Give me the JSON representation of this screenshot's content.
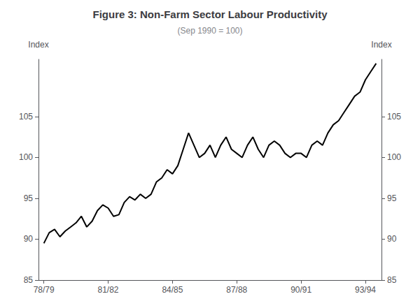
{
  "chart_data": {
    "type": "line",
    "title": "Figure 3: Non-Farm Sector Labour Productivity",
    "subtitle": "(Sep 1990 = 100)",
    "ylabel": "Index",
    "y2label": "Index",
    "x": [
      1978.75,
      1979.0,
      1979.25,
      1979.5,
      1979.75,
      1980.0,
      1980.25,
      1980.5,
      1980.75,
      1981.0,
      1981.25,
      1981.5,
      1981.75,
      1982.0,
      1982.25,
      1982.5,
      1982.75,
      1983.0,
      1983.25,
      1983.5,
      1983.75,
      1984.0,
      1984.25,
      1984.5,
      1984.75,
      1985.0,
      1985.25,
      1985.5,
      1985.75,
      1986.0,
      1986.25,
      1986.5,
      1986.75,
      1987.0,
      1987.25,
      1987.5,
      1987.75,
      1988.0,
      1988.25,
      1988.5,
      1988.75,
      1989.0,
      1989.25,
      1989.5,
      1989.75,
      1990.0,
      1990.25,
      1990.5,
      1990.75,
      1991.0,
      1991.25,
      1991.5,
      1991.75,
      1992.0,
      1992.25,
      1992.5,
      1992.75,
      1993.0,
      1993.25,
      1993.5,
      1993.75,
      1994.0,
      1994.25
    ],
    "values": [
      89.5,
      90.8,
      91.2,
      90.3,
      91.0,
      91.5,
      92.0,
      92.8,
      91.5,
      92.2,
      93.5,
      94.2,
      93.8,
      92.8,
      93.0,
      94.5,
      95.2,
      94.8,
      95.5,
      95.0,
      95.5,
      97.0,
      97.5,
      98.5,
      98.0,
      99.0,
      101.0,
      103.0,
      101.5,
      100.0,
      100.5,
      101.5,
      100.0,
      101.5,
      102.5,
      101.0,
      100.5,
      100.0,
      101.5,
      102.5,
      101.0,
      100.0,
      101.5,
      102.0,
      101.5,
      100.5,
      100.0,
      100.5,
      100.5,
      100.0,
      101.5,
      102.0,
      101.5,
      103.0,
      104.0,
      104.5,
      105.5,
      106.5,
      107.5,
      108.0,
      109.5,
      110.5,
      111.5
    ],
    "color": "#000000",
    "xlim": [
      1978.5,
      1994.5
    ],
    "xticks": [
      {
        "value": 1978.75,
        "label": "78/79"
      },
      {
        "value": 1981.75,
        "label": "81/82"
      },
      {
        "value": 1984.75,
        "label": "84/85"
      },
      {
        "value": 1987.75,
        "label": "87/88"
      },
      {
        "value": 1990.75,
        "label": "90/91"
      },
      {
        "value": 1993.75,
        "label": "93/94"
      }
    ],
    "ylim": [
      85,
      112
    ],
    "yticks": [
      85,
      90,
      95,
      100,
      105
    ],
    "y2lim": [
      85,
      112
    ],
    "y2ticks": [
      85,
      90,
      95,
      100,
      105
    ],
    "grid": false
  }
}
